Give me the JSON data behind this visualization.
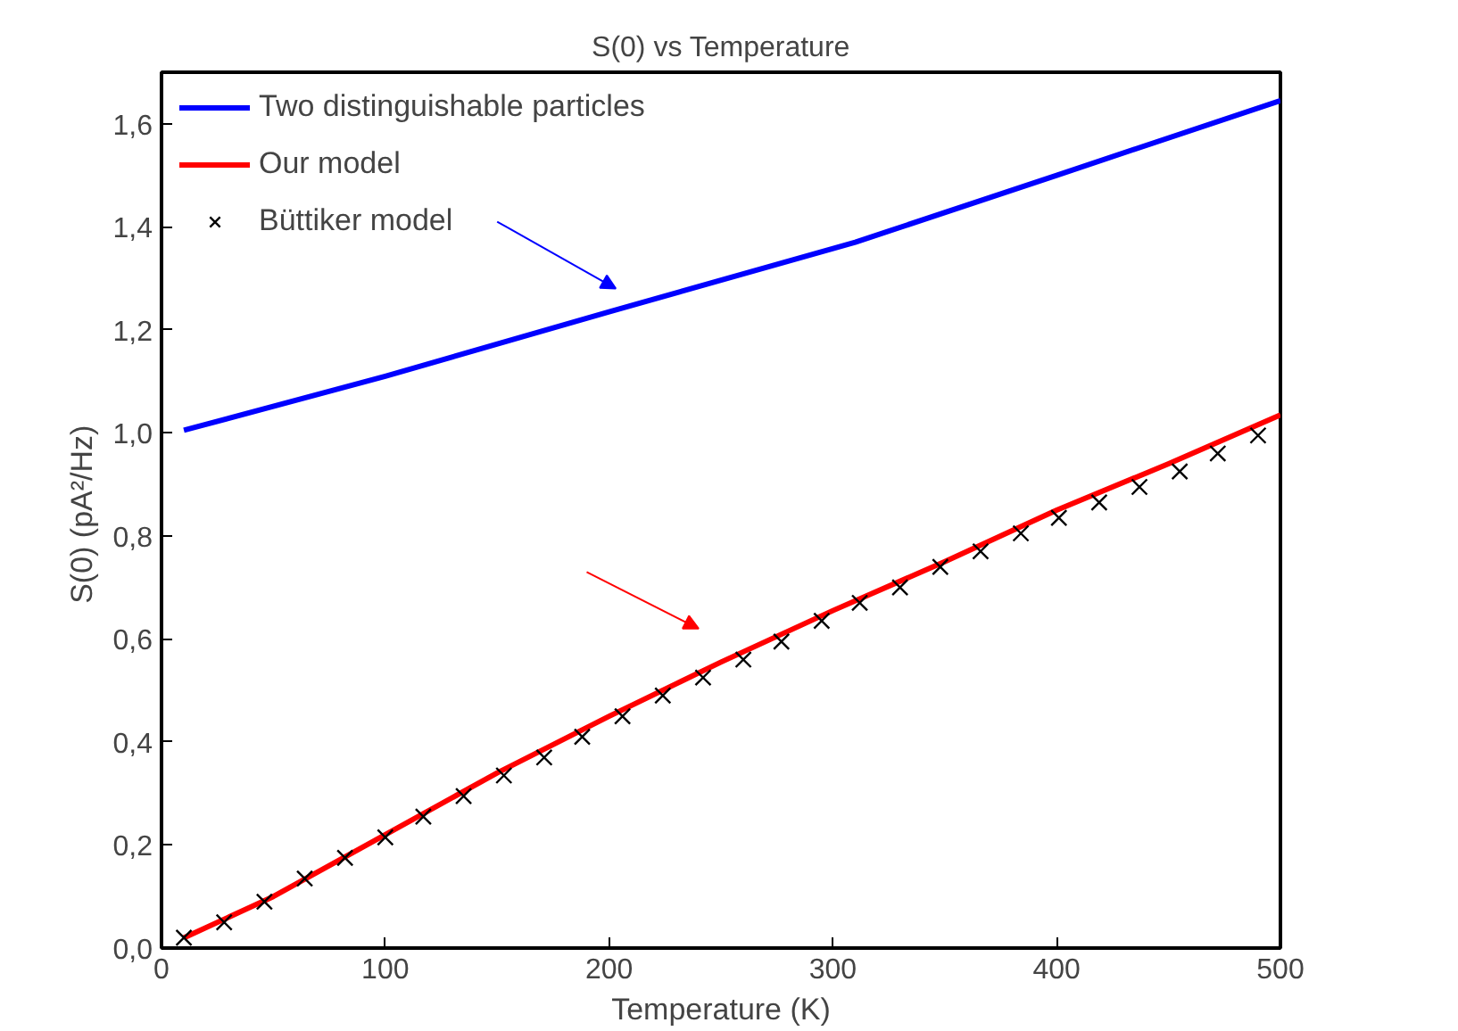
{
  "chart_data": {
    "type": "line",
    "title": "S(0) vs Temperature",
    "xlabel": "Temperature (K)",
    "ylabel": "S(0)  (pA²/Hz)",
    "xlim": [
      0,
      500
    ],
    "ylim": [
      0,
      1.7
    ],
    "xticks": [
      0,
      100,
      200,
      300,
      400,
      500
    ],
    "yticks": [
      {
        "value": 0,
        "label": "0,0"
      },
      {
        "value": 0.2,
        "label": "0,2"
      },
      {
        "value": 0.4,
        "label": "0,4"
      },
      {
        "value": 0.6,
        "label": "0,6"
      },
      {
        "value": 0.8,
        "label": "0,8"
      },
      {
        "value": 1.0,
        "label": "1,0"
      },
      {
        "value": 1.2,
        "label": "1,2"
      },
      {
        "value": 1.4,
        "label": "1,4"
      },
      {
        "value": 1.6,
        "label": "1,6"
      }
    ],
    "grid": false,
    "legend": "top left",
    "series": [
      {
        "name": "Two distinguishable particles",
        "color": "#0000ff",
        "marker": "none",
        "x": [
          10,
          100,
          200,
          310,
          400,
          500
        ],
        "values": [
          1.005,
          1.11,
          1.235,
          1.37,
          1.5,
          1.645
        ]
      },
      {
        "name": "Our model",
        "color": "#ff0000",
        "marker": "none",
        "x": [
          10,
          50,
          100,
          150,
          200,
          250,
          300,
          350,
          400,
          450,
          500
        ],
        "values": [
          0.02,
          0.1,
          0.22,
          0.34,
          0.45,
          0.555,
          0.655,
          0.75,
          0.85,
          0.94,
          1.035
        ]
      },
      {
        "name": "Büttiker model",
        "color": "#000000",
        "type": "scatter",
        "marker": "cross",
        "x": [
          10,
          28,
          46,
          64,
          82,
          100,
          117,
          135,
          153,
          171,
          188,
          206,
          224,
          242,
          260,
          277,
          295,
          312,
          330,
          348,
          366,
          384,
          401,
          419,
          437,
          455,
          472,
          490
        ],
        "values": [
          0.02,
          0.05,
          0.09,
          0.135,
          0.175,
          0.215,
          0.255,
          0.295,
          0.335,
          0.37,
          0.41,
          0.45,
          0.49,
          0.525,
          0.56,
          0.595,
          0.635,
          0.67,
          0.7,
          0.74,
          0.77,
          0.805,
          0.835,
          0.865,
          0.895,
          0.925,
          0.96,
          0.995
        ]
      }
    ]
  }
}
